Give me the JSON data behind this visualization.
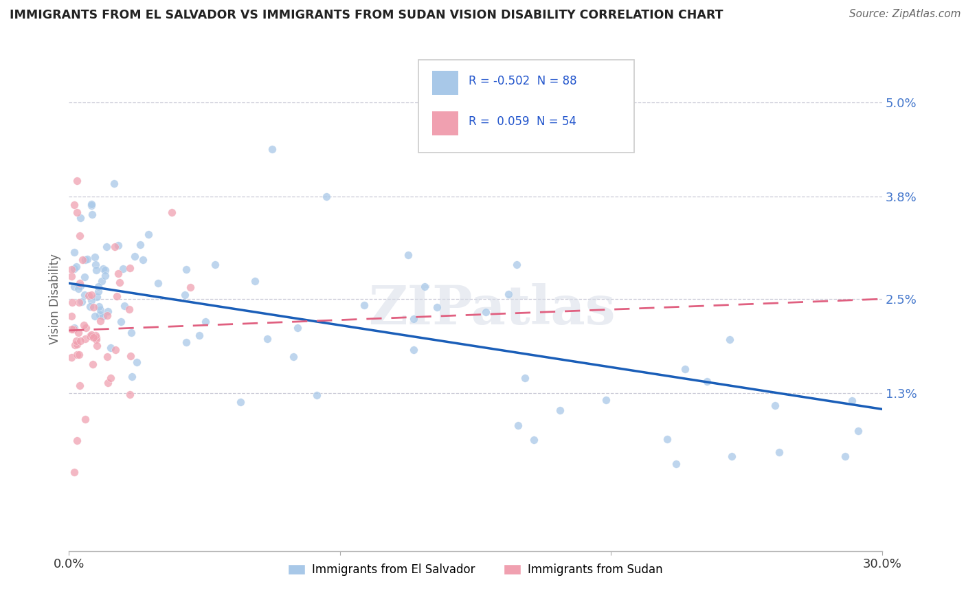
{
  "title": "IMMIGRANTS FROM EL SALVADOR VS IMMIGRANTS FROM SUDAN VISION DISABILITY CORRELATION CHART",
  "source": "Source: ZipAtlas.com",
  "ylabel": "Vision Disability",
  "xmin": 0.0,
  "xmax": 0.3,
  "ymin": -0.007,
  "ymax": 0.057,
  "ytick_vals": [
    0.013,
    0.025,
    0.038,
    0.05
  ],
  "ytick_labels": [
    "1.3%",
    "2.5%",
    "3.8%",
    "5.0%"
  ],
  "color_blue": "#a8c8e8",
  "color_pink": "#f0a0b0",
  "color_blue_line": "#1a5eb8",
  "color_pink_line": "#e06080",
  "watermark": "ZIPatlas",
  "legend_label1": "Immigrants from El Salvador",
  "legend_label2": "Immigrants from Sudan",
  "blue_line_start": 0.027,
  "blue_line_end": 0.011,
  "pink_line_start": 0.021,
  "pink_line_end": 0.025
}
